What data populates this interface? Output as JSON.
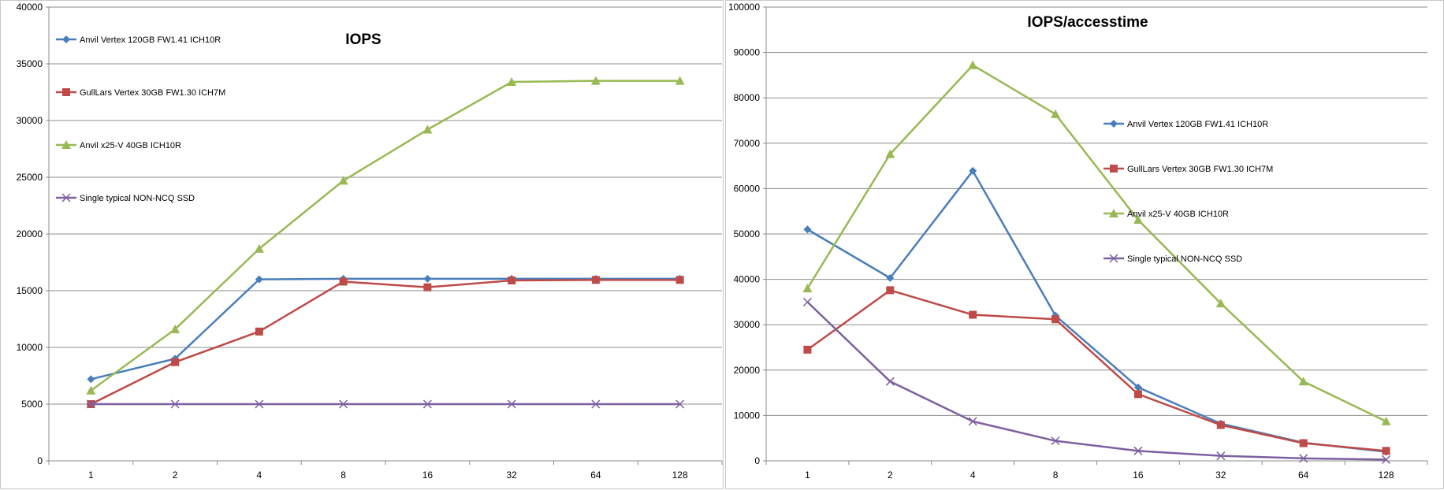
{
  "chart_data": [
    {
      "type": "line",
      "title": "IOPS",
      "xlabel": "",
      "ylabel": "",
      "categories": [
        "1",
        "2",
        "4",
        "8",
        "16",
        "32",
        "64",
        "128"
      ],
      "ylim": [
        0,
        40000
      ],
      "yticks": [
        0,
        5000,
        10000,
        15000,
        20000,
        25000,
        30000,
        35000,
        40000
      ],
      "grid": true,
      "legend_position": "top-left",
      "series": [
        {
          "name": "Anvil Vertex 120GB FW1.41 ICH10R",
          "color": "#4a7ebb",
          "marker": "diamond",
          "values": [
            7200,
            9000,
            16000,
            16050,
            16050,
            16050,
            16050,
            16050
          ]
        },
        {
          "name": "GullLars Vertex 30GB FW1.30 ICH7M",
          "color": "#be4b48",
          "marker": "square",
          "values": [
            5000,
            8700,
            11400,
            15800,
            15300,
            15900,
            15950,
            15950
          ]
        },
        {
          "name": "Anvil x25-V 40GB ICH10R",
          "color": "#98b954",
          "marker": "triangle",
          "values": [
            6200,
            11600,
            18700,
            24700,
            29200,
            33400,
            33500,
            33500
          ]
        },
        {
          "name": "Single typical NON-NCQ SSD",
          "color": "#7d60a0",
          "marker": "x",
          "values": [
            5000,
            5000,
            5000,
            5000,
            5000,
            5000,
            5000,
            5000
          ]
        }
      ]
    },
    {
      "type": "line",
      "title": "IOPS/accesstime",
      "xlabel": "",
      "ylabel": "",
      "categories": [
        "1",
        "2",
        "4",
        "8",
        "16",
        "32",
        "64",
        "128"
      ],
      "ylim": [
        0,
        100000
      ],
      "yticks": [
        0,
        10000,
        20000,
        30000,
        40000,
        50000,
        60000,
        70000,
        80000,
        90000,
        100000
      ],
      "grid": true,
      "legend_position": "right",
      "series": [
        {
          "name": "Anvil Vertex 120GB FW1.41 ICH10R",
          "color": "#4a7ebb",
          "marker": "diamond",
          "values": [
            51000,
            40300,
            63900,
            32000,
            16200,
            8200,
            4000,
            2000
          ]
        },
        {
          "name": "GullLars Vertex 30GB FW1.30 ICH7M",
          "color": "#be4b48",
          "marker": "square",
          "values": [
            24500,
            37600,
            32200,
            31200,
            14700,
            7900,
            3900,
            2200
          ]
        },
        {
          "name": "Anvil x25-V 40GB ICH10R",
          "color": "#98b954",
          "marker": "triangle",
          "values": [
            38000,
            67600,
            87200,
            76400,
            53100,
            34700,
            17500,
            8700
          ]
        },
        {
          "name": "Single typical NON-NCQ SSD",
          "color": "#7d60a0",
          "marker": "x",
          "values": [
            35000,
            17500,
            8700,
            4400,
            2200,
            1100,
            550,
            280
          ]
        }
      ]
    }
  ]
}
